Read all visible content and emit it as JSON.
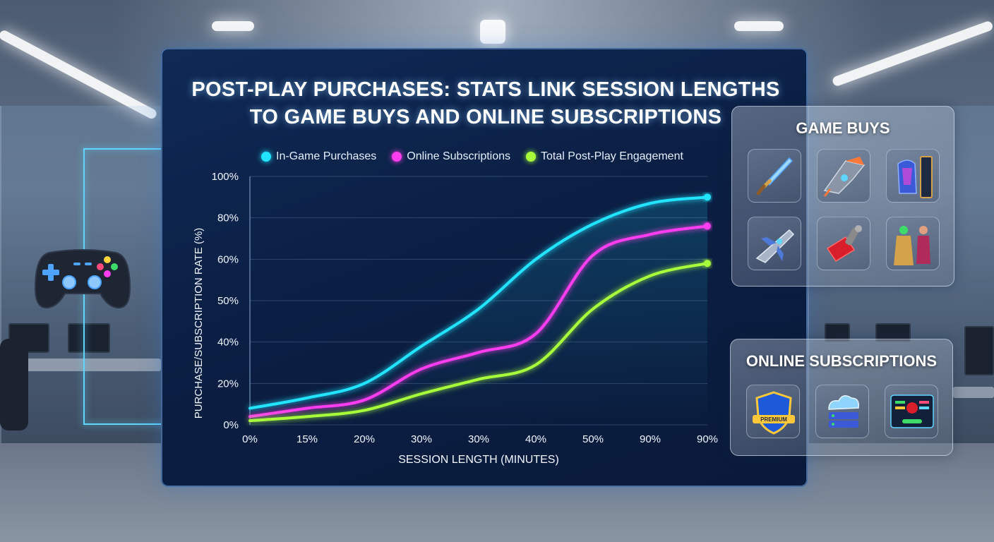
{
  "chart_data": {
    "type": "line",
    "title": "POST-PLAY PURCHASES: STATS LINK SESSION LENGTHS TO GAME BUYS AND ONLINE SUBSCRIPTIONS",
    "title_lines": [
      "POST-PLAY PURCHASES: STATS LINK SESSION LENGTHS",
      "TO GAME BUYS AND ONLINE SUBSCRIPTIONS"
    ],
    "xlabel": "SESSION LENGTH (MINUTES)",
    "ylabel": "PURCHASE/SUBSCRIPTION RATE (%)",
    "categories": [
      "0%",
      "15%",
      "20%",
      "30%",
      "30%",
      "40%",
      "50%",
      "90%",
      "90%"
    ],
    "y_ticks": [
      {
        "label": "0%",
        "value": 0
      },
      {
        "label": "20%",
        "value": 20
      },
      {
        "label": "40%",
        "value": 40
      },
      {
        "label": "50%",
        "value": 50
      },
      {
        "label": "60%",
        "value": 60
      },
      {
        "label": "80%",
        "value": 80
      },
      {
        "label": "100%",
        "value": 100
      }
    ],
    "ylim": [
      0,
      100
    ],
    "grid": true,
    "legend_position": "top",
    "series": [
      {
        "name": "In-Game Purchases",
        "color": "#22e4ff",
        "values": [
          8,
          13,
          20,
          38,
          48,
          60,
          77,
          87,
          90
        ]
      },
      {
        "name": "Online Subscriptions",
        "color": "#ff3df0",
        "values": [
          4,
          8,
          12,
          27,
          35,
          42,
          62,
          72,
          76
        ]
      },
      {
        "name": "Total Post-Play Engagement",
        "color": "#a8ff3a",
        "values": [
          2,
          4,
          7,
          15,
          22,
          29,
          48,
          56,
          59
        ]
      }
    ]
  },
  "game_buys": {
    "title": "GAME BUYS",
    "items": [
      "sword-icon",
      "spaceship-icon",
      "armor-skin-icon",
      "starfighter-icon",
      "red-gauntlet-icon",
      "character-skins-icon"
    ]
  },
  "online_subscriptions": {
    "title": "ONLINE SUBSCRIPTIONS",
    "items": [
      "premium-badge-icon",
      "cloud-server-icon",
      "game-dashboard-icon"
    ],
    "premium_label": "PREMIUM"
  }
}
